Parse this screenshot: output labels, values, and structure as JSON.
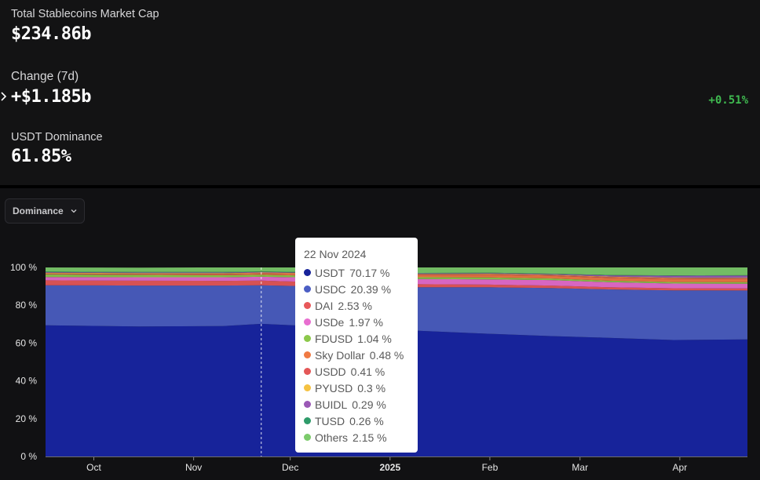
{
  "stats": {
    "market_cap_label": "Total Stablecoins Market Cap",
    "market_cap_value": "$234.86b",
    "change_label": "Change (7d)",
    "change_value": "+$1.185b",
    "change_pct": "+0.51%",
    "dominance_label": "USDT Dominance",
    "dominance_value": "61.85%"
  },
  "controls": {
    "mode_label": "Dominance"
  },
  "colors": {
    "positive": "#3fb950",
    "background": "#111113"
  },
  "tooltip": {
    "date": "22 Nov 2024",
    "items": [
      {
        "name": "USDT",
        "value": "70.17 %",
        "color": "#17239a"
      },
      {
        "name": "USDC",
        "value": "20.39 %",
        "color": "#4b5ec4"
      },
      {
        "name": "DAI",
        "value": "2.53 %",
        "color": "#e8585a"
      },
      {
        "name": "USDe",
        "value": "1.97 %",
        "color": "#e86ed0"
      },
      {
        "name": "FDUSD",
        "value": "1.04 %",
        "color": "#8cc84b"
      },
      {
        "name": "Sky Dollar",
        "value": "0.48 %",
        "color": "#f07a43"
      },
      {
        "name": "USDD",
        "value": "0.41 %",
        "color": "#e45757"
      },
      {
        "name": "PYUSD",
        "value": "0.3 %",
        "color": "#f5c242"
      },
      {
        "name": "BUIDL",
        "value": "0.29 %",
        "color": "#9b59b6"
      },
      {
        "name": "TUSD",
        "value": "0.26 %",
        "color": "#2e9b6a"
      },
      {
        "name": "Others",
        "value": "2.15 %",
        "color": "#7ccb6b"
      }
    ]
  },
  "chart_data": {
    "type": "area",
    "stacked": true,
    "ylim": [
      0,
      100
    ],
    "y_ticks": [
      0,
      20,
      40,
      60,
      80,
      100
    ],
    "y_tick_labels": [
      "0 %",
      "20 %",
      "40 %",
      "60 %",
      "80 %",
      "100 %"
    ],
    "x_ticks": [
      "Oct",
      "Nov",
      "Dec",
      "2025",
      "Feb",
      "Mar",
      "Apr"
    ],
    "x_tick_dates": [
      "2024-10-01",
      "2024-11-01",
      "2024-12-01",
      "2025-01-01",
      "2025-02-01",
      "2025-03-01",
      "2025-04-01"
    ],
    "x_range": [
      "2024-09-16",
      "2025-04-22"
    ],
    "x": [
      "2024-09-16",
      "2024-10-15",
      "2024-11-10",
      "2024-11-22",
      "2024-12-20",
      "2025-01-10",
      "2025-02-01",
      "2025-02-20",
      "2025-03-10",
      "2025-03-30",
      "2025-04-22"
    ],
    "hover_date": "2024-11-22",
    "series": [
      {
        "name": "USDT",
        "color": "#17239a",
        "values": [
          69.4,
          68.8,
          69.0,
          70.17,
          68.0,
          66.5,
          64.9,
          63.7,
          62.8,
          61.6,
          61.9
        ]
      },
      {
        "name": "USDC",
        "color": "#4b5ec4",
        "values": [
          21.2,
          21.6,
          21.4,
          20.39,
          21.6,
          23.0,
          24.6,
          25.4,
          25.6,
          26.3,
          25.9
        ]
      },
      {
        "name": "DAI",
        "color": "#e8585a",
        "values": [
          2.6,
          2.6,
          2.5,
          2.53,
          2.0,
          1.6,
          1.4,
          1.3,
          1.1,
          1.1,
          1.1
        ]
      },
      {
        "name": "USDe",
        "color": "#e86ed0",
        "values": [
          1.7,
          1.8,
          1.9,
          1.97,
          2.7,
          2.8,
          2.8,
          2.9,
          2.7,
          2.5,
          2.5
        ]
      },
      {
        "name": "FDUSD",
        "color": "#8cc84b",
        "values": [
          1.4,
          1.3,
          1.1,
          1.04,
          1.0,
          0.9,
          1.0,
          0.9,
          0.8,
          0.8,
          0.8
        ]
      },
      {
        "name": "Sky Dollar",
        "color": "#f07a43",
        "values": [
          0.1,
          0.2,
          0.4,
          0.48,
          0.9,
          1.1,
          1.3,
          1.3,
          1.5,
          1.6,
          1.6
        ]
      },
      {
        "name": "USDD",
        "color": "#e45757",
        "values": [
          0.4,
          0.4,
          0.4,
          0.41,
          0.4,
          0.4,
          0.4,
          0.4,
          0.4,
          0.4,
          0.4
        ]
      },
      {
        "name": "PYUSD",
        "color": "#f5c242",
        "values": [
          0.4,
          0.3,
          0.3,
          0.3,
          0.3,
          0.3,
          0.3,
          0.3,
          0.3,
          0.3,
          0.3
        ]
      },
      {
        "name": "BUIDL",
        "color": "#9b59b6",
        "values": [
          0.3,
          0.3,
          0.3,
          0.29,
          0.2,
          0.3,
          0.3,
          0.3,
          0.6,
          1.0,
          1.2
        ]
      },
      {
        "name": "TUSD",
        "color": "#2e9b6a",
        "values": [
          0.3,
          0.3,
          0.3,
          0.26,
          0.3,
          0.2,
          0.2,
          0.2,
          0.2,
          0.2,
          0.2
        ]
      },
      {
        "name": "Others",
        "color": "#7ccb6b",
        "values": [
          2.2,
          2.3,
          2.4,
          2.15,
          2.6,
          2.9,
          2.8,
          3.3,
          4.0,
          4.2,
          4.1
        ]
      }
    ]
  }
}
